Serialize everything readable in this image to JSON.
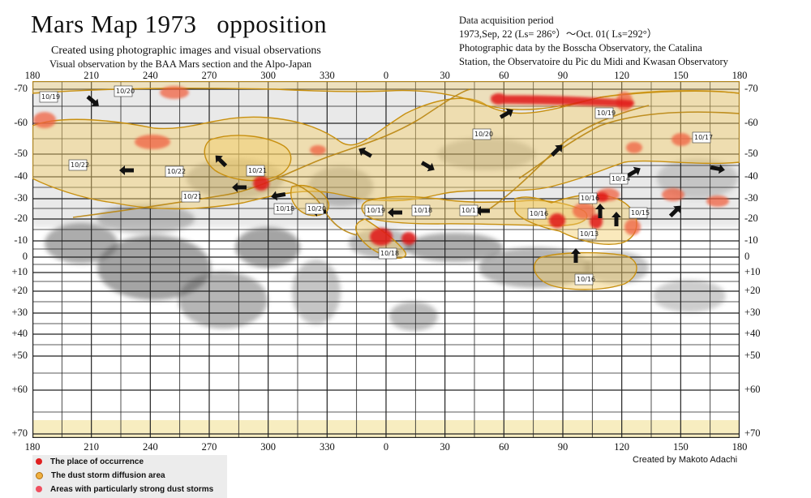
{
  "title": "Mars Map 1973   opposition",
  "subtitle1": "Created using photographic images and visual observations",
  "subtitle2": "Visual observation by the BAA Mars section and the Alpo-Japan",
  "info": [
    "Data acquisition period",
    "1973,Sep, 22 (Ls= 286°）～Oct. 01( Ls=292°）",
    "Photographic data by the Bosscha Observatory, the Catalina",
    "Station, the Observatoire du Pic du Midi and Kwasan Observatory"
  ],
  "longitude_labels": [
    "180",
    "210",
    "240",
    "270",
    "300",
    "330",
    "0",
    "30",
    "60",
    "90",
    "120",
    "150",
    "180"
  ],
  "latitude_labels": [
    "-70",
    "-60",
    "-50",
    "-40",
    "-30",
    "-20",
    "-10",
    "0",
    "+10",
    "+20",
    "+30",
    "+40",
    "+50",
    "+60",
    "+70"
  ],
  "date_labels": [
    "10/19",
    "10/20",
    "10/22",
    "10/22",
    "10/21",
    "10/21",
    "10/18",
    "10/20",
    "10/19",
    "10/18",
    "10/17",
    "10/20",
    "10/19",
    "10/17",
    "10/16",
    "10/16",
    "10/14",
    "10/15",
    "10/13",
    "10/16",
    "10/18"
  ],
  "legend": {
    "occurrence": "The place of occurrence",
    "diffusion": "The dust storm diffusion area",
    "strong": "Areas with particularly strong dust storms"
  },
  "credit": "Created by Makoto Adachi",
  "colors": {
    "occurrence": "#e02020",
    "diffusion": "#f0b040",
    "strong": "#f05060",
    "outline": "#c89010",
    "dark_albedo": "#555555"
  }
}
